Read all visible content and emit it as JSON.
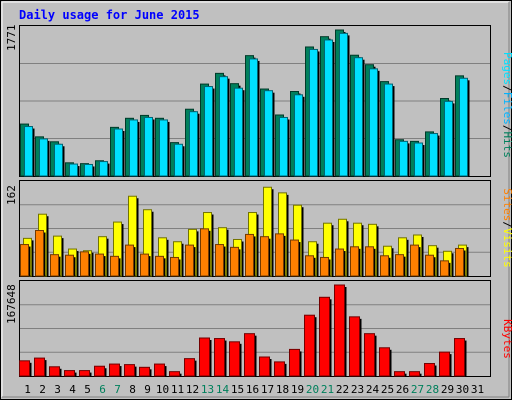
{
  "chart_data": [
    {
      "type": "bar",
      "panel": "hits-files-pages",
      "title": "Daily usage for June 2015",
      "categories": [
        "1",
        "2",
        "3",
        "4",
        "5",
        "6",
        "7",
        "8",
        "9",
        "10",
        "11",
        "12",
        "13",
        "14",
        "15",
        "16",
        "17",
        "18",
        "19",
        "20",
        "21",
        "22",
        "23",
        "24",
        "25",
        "26",
        "27",
        "28",
        "29",
        "30",
        "31"
      ],
      "ylim": [
        0,
        1771
      ],
      "ytick": "1771",
      "series": [
        {
          "name": "Hits",
          "color": "#00805c",
          "values": [
            630,
            475,
            415,
            160,
            150,
            185,
            590,
            700,
            735,
            700,
            405,
            810,
            1115,
            1245,
            1120,
            1460,
            1055,
            740,
            1025,
            1565,
            1690,
            1771,
            1465,
            1350,
            1145,
            440,
            420,
            535,
            940,
            1215,
            0
          ]
        },
        {
          "name": "Files",
          "color": "#00b4ff",
          "values": [
            0,
            0,
            0,
            0,
            0,
            0,
            0,
            0,
            0,
            0,
            0,
            0,
            0,
            0,
            0,
            0,
            0,
            0,
            0,
            0,
            0,
            0,
            0,
            0,
            0,
            0,
            0,
            0,
            0,
            0,
            0
          ]
        },
        {
          "name": "Pages",
          "color": "#00e0ff",
          "values": [
            600,
            450,
            385,
            145,
            140,
            175,
            570,
            680,
            710,
            680,
            385,
            780,
            1085,
            1205,
            1065,
            1420,
            1035,
            710,
            985,
            1535,
            1650,
            1730,
            1435,
            1300,
            1115,
            420,
            400,
            515,
            905,
            1185,
            0
          ]
        }
      ],
      "legend": [
        "Pages",
        "/",
        "Files",
        "/",
        "Hits"
      ]
    },
    {
      "type": "bar",
      "panel": "visits-sites",
      "categories": [
        "1",
        "2",
        "3",
        "4",
        "5",
        "6",
        "7",
        "8",
        "9",
        "10",
        "11",
        "12",
        "13",
        "14",
        "15",
        "16",
        "17",
        "18",
        "19",
        "20",
        "21",
        "22",
        "23",
        "24",
        "25",
        "26",
        "27",
        "28",
        "29",
        "30",
        "31"
      ],
      "ylim": [
        0,
        162
      ],
      "ytick": "162",
      "series": [
        {
          "name": "Visits",
          "color": "#ffff00",
          "values": [
            67,
            110,
            71,
            48,
            45,
            70,
            96,
            142,
            118,
            68,
            61,
            83,
            113,
            86,
            65,
            113,
            158,
            148,
            126,
            61,
            94,
            101,
            94,
            92,
            53,
            68,
            73,
            54,
            44,
            55,
            0
          ]
        },
        {
          "name": "Sites",
          "color": "#ff8000",
          "values": [
            56,
            81,
            38,
            37,
            43,
            39,
            35,
            55,
            39,
            35,
            33,
            55,
            84,
            56,
            51,
            74,
            70,
            75,
            64,
            36,
            33,
            48,
            52,
            52,
            36,
            38,
            55,
            37,
            27,
            49,
            0
          ]
        }
      ],
      "legend": [
        "Sites",
        "/",
        "Visits"
      ]
    },
    {
      "type": "bar",
      "panel": "kbytes",
      "categories": [
        "1",
        "2",
        "3",
        "4",
        "5",
        "6",
        "7",
        "8",
        "9",
        "10",
        "11",
        "12",
        "13",
        "14",
        "15",
        "16",
        "17",
        "18",
        "19",
        "20",
        "21",
        "22",
        "23",
        "24",
        "25",
        "26",
        "27",
        "28",
        "29",
        "30",
        "31"
      ],
      "ylim": [
        0,
        167648
      ],
      "ytick": "167648",
      "series": [
        {
          "name": "KBytes",
          "color": "#ff0000",
          "values": [
            28000,
            33000,
            17000,
            10000,
            10000,
            18000,
            22000,
            21000,
            16000,
            22000,
            8000,
            32000,
            70000,
            69000,
            63000,
            78000,
            35000,
            26000,
            49000,
            112000,
            145000,
            167648,
            109000,
            78000,
            52000,
            8000,
            8000,
            23000,
            44000,
            69000,
            0
          ]
        }
      ],
      "legend": [
        "KBytes"
      ]
    }
  ],
  "x_axis_labels": [
    {
      "label": "1",
      "weekend": false
    },
    {
      "label": "2",
      "weekend": false
    },
    {
      "label": "3",
      "weekend": false
    },
    {
      "label": "4",
      "weekend": false
    },
    {
      "label": "5",
      "weekend": false
    },
    {
      "label": "6",
      "weekend": true
    },
    {
      "label": "7",
      "weekend": true
    },
    {
      "label": "8",
      "weekend": false
    },
    {
      "label": "9",
      "weekend": false
    },
    {
      "label": "10",
      "weekend": false
    },
    {
      "label": "11",
      "weekend": false
    },
    {
      "label": "12",
      "weekend": false
    },
    {
      "label": "13",
      "weekend": true
    },
    {
      "label": "14",
      "weekend": true
    },
    {
      "label": "15",
      "weekend": false
    },
    {
      "label": "16",
      "weekend": false
    },
    {
      "label": "17",
      "weekend": false
    },
    {
      "label": "18",
      "weekend": false
    },
    {
      "label": "19",
      "weekend": false
    },
    {
      "label": "20",
      "weekend": true
    },
    {
      "label": "21",
      "weekend": true
    },
    {
      "label": "22",
      "weekend": false
    },
    {
      "label": "23",
      "weekend": false
    },
    {
      "label": "24",
      "weekend": false
    },
    {
      "label": "25",
      "weekend": false
    },
    {
      "label": "26",
      "weekend": false
    },
    {
      "label": "27",
      "weekend": true
    },
    {
      "label": "28",
      "weekend": true
    },
    {
      "label": "29",
      "weekend": false
    },
    {
      "label": "30",
      "weekend": false
    },
    {
      "label": "31",
      "weekend": false
    }
  ],
  "colors": {
    "frame": "#c0c0c0",
    "plot_bg": "#c0c0c0",
    "title": "#0000ff",
    "weekday_label": "#000000",
    "weekend_label": "#00805c",
    "grid": "#808080"
  }
}
